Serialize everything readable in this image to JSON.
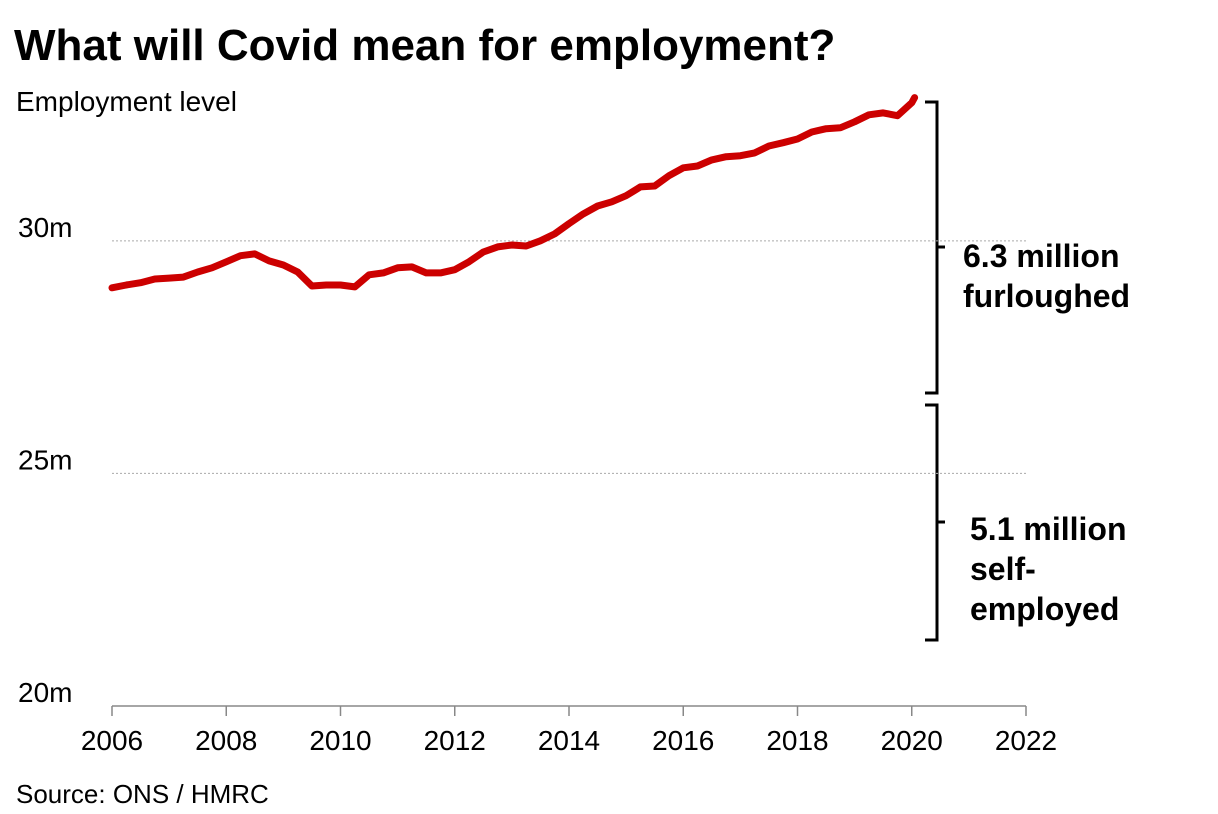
{
  "chart_data": {
    "type": "line",
    "title": "What will Covid mean for employment?",
    "subtitle": "Employment level",
    "source": "Source: ONS / HMRC",
    "x": [
      2006.0,
      2006.25,
      2006.5,
      2006.75,
      2007.0,
      2007.25,
      2007.5,
      2007.75,
      2008.0,
      2008.25,
      2008.5,
      2008.75,
      2009.0,
      2009.25,
      2009.5,
      2009.75,
      2010.0,
      2010.25,
      2010.5,
      2010.75,
      2011.0,
      2011.25,
      2011.5,
      2011.75,
      2012.0,
      2012.25,
      2012.5,
      2012.75,
      2013.0,
      2013.25,
      2013.5,
      2013.75,
      2014.0,
      2014.25,
      2014.5,
      2014.75,
      2015.0,
      2015.25,
      2015.5,
      2015.75,
      2016.0,
      2016.25,
      2016.5,
      2016.75,
      2017.0,
      2017.25,
      2017.5,
      2017.75,
      2018.0,
      2018.25,
      2018.5,
      2018.75,
      2019.0,
      2019.25,
      2019.5,
      2019.75,
      2020.0,
      2020.05
    ],
    "series": [
      {
        "name": "Employment level",
        "color": "#cc0000",
        "values": [
          28.99,
          29.05,
          29.1,
          29.18,
          29.2,
          29.22,
          29.33,
          29.42,
          29.55,
          29.68,
          29.72,
          29.57,
          29.48,
          29.33,
          29.03,
          29.05,
          29.05,
          29.01,
          29.27,
          29.31,
          29.42,
          29.44,
          29.31,
          29.31,
          29.38,
          29.55,
          29.76,
          29.87,
          29.91,
          29.89,
          30.0,
          30.15,
          30.37,
          30.58,
          30.75,
          30.84,
          30.97,
          31.16,
          31.18,
          31.4,
          31.57,
          31.61,
          31.74,
          31.81,
          31.83,
          31.89,
          32.04,
          32.11,
          32.19,
          32.34,
          32.41,
          32.43,
          32.56,
          32.71,
          32.75,
          32.69,
          32.97,
          33.08
        ]
      }
    ],
    "xlim": [
      2006,
      2022
    ],
    "xticks": [
      2006,
      2008,
      2010,
      2012,
      2014,
      2016,
      2018,
      2020,
      2022
    ],
    "ylim": [
      20,
      33.2
    ],
    "yticks": [
      {
        "value": 20,
        "label": "20m"
      },
      {
        "value": 25,
        "label": "25m"
      },
      {
        "value": 30,
        "label": "30m"
      }
    ],
    "grid": true,
    "annotations": [
      {
        "lines": [
          "6.3 million",
          "furloughed"
        ]
      },
      {
        "lines": [
          "5.1 million",
          "self-",
          "employed"
        ]
      }
    ]
  }
}
